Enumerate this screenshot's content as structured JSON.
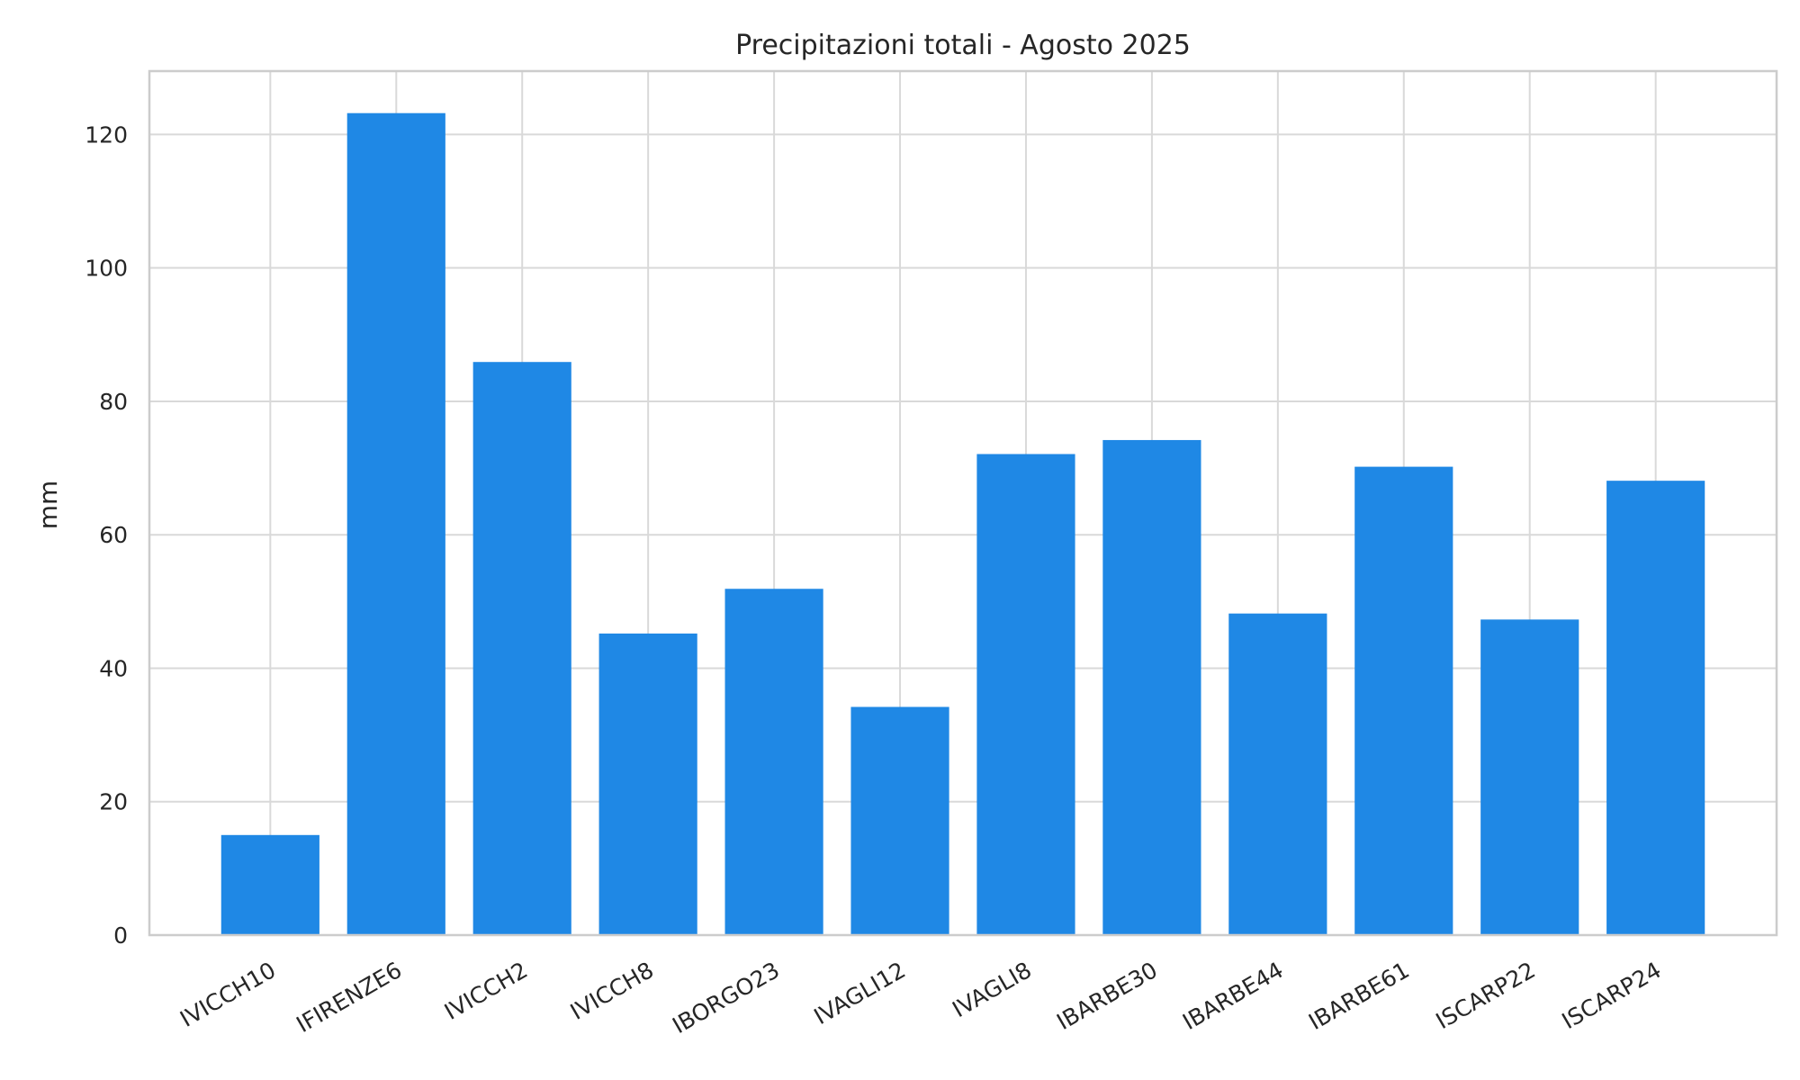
{
  "chart_data": {
    "type": "bar",
    "title": "Precipitazioni totali - Agosto 2025",
    "xlabel": "",
    "ylabel": "mm",
    "categories": [
      "IVICCH10",
      "IFIRENZE6",
      "IVICCH2",
      "IVICCH8",
      "IBORGO23",
      "IVAGLI12",
      "IVAGLI8",
      "IBARBE30",
      "IBARBE44",
      "IBARBE61",
      "ISCARP22",
      "ISCARP24"
    ],
    "values": [
      15.0,
      123.2,
      85.9,
      45.2,
      51.9,
      34.2,
      72.1,
      74.2,
      48.2,
      70.2,
      47.3,
      68.1
    ],
    "ylim": [
      0,
      129.5
    ],
    "yticks": [
      0,
      20,
      40,
      60,
      80,
      100,
      120
    ],
    "grid": true,
    "bar_color": "#1f88e5"
  }
}
